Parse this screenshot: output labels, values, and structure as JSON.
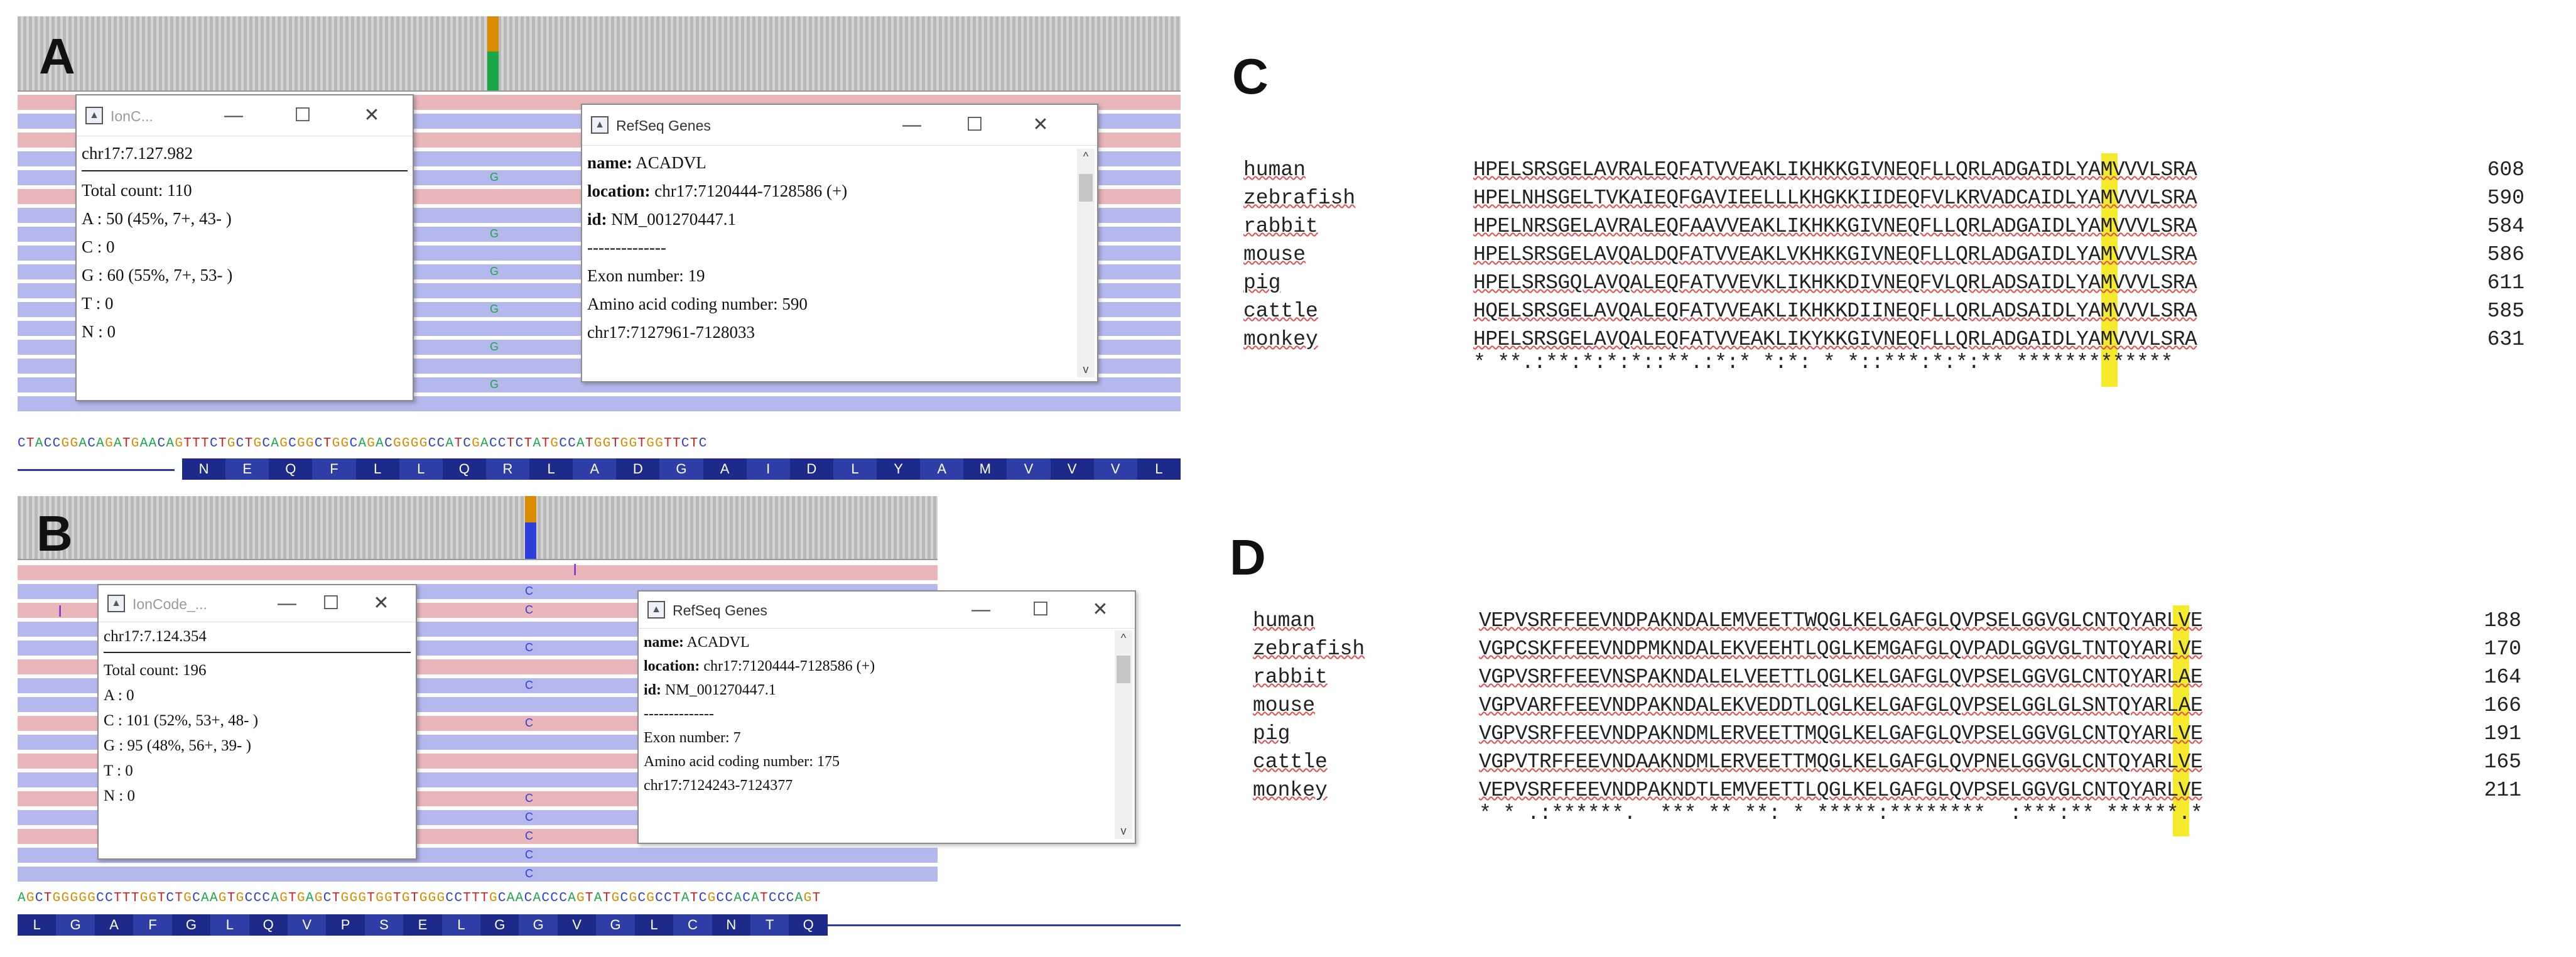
{
  "panel_labels": {
    "a": "A",
    "b": "B",
    "c": "C",
    "d": "D"
  },
  "panel_a": {
    "reference_sequence": "CTACCGGACAGATGAACAGTTTCTGCTGCAGCGGCTGGCAGACGGGGCCATCGACCTCTATGCCATGGTGGTGGTTCTC",
    "amino_acids": [
      "N",
      "E",
      "Q",
      "F",
      "L",
      "L",
      "Q",
      "R",
      "L",
      "A",
      "D",
      "G",
      "A",
      "I",
      "D",
      "L",
      "Y",
      "A",
      "M",
      "V",
      "V",
      "V",
      "L"
    ],
    "coverage_popup": {
      "title": "IonC...",
      "position": "chr17:7.127.982",
      "total": "Total count: 110",
      "a": "A : 50 (45%, 7+, 43- )",
      "c": "C : 0",
      "g": "G : 60 (55%, 7+, 53- )",
      "t": "T : 0",
      "n": "N : 0"
    },
    "refseq_popup": {
      "title": "RefSeq Genes",
      "name_label": "name:",
      "name": "ACADVL",
      "location_label": "location:",
      "location": "chr17:7120444-7128586 (+)",
      "id_label": "id:",
      "id": "NM_001270447.1",
      "sep": "--------------",
      "exon": "Exon number: 19",
      "aa_coding": "Amino acid coding number: 590",
      "range": "chr17:7127961-7128033"
    }
  },
  "panel_b": {
    "reference_sequence": "AGCTGGGGGCCTTTGGTCTGCAAGTGCCCAGTGAGCTGGGTGGTGTGGGCCTTTGCAACACCCAGTATGCGCGCCTATCGCCACATCCCAGT",
    "amino_acids": [
      "L",
      "G",
      "A",
      "F",
      "G",
      "L",
      "Q",
      "V",
      "P",
      "S",
      "E",
      "L",
      "G",
      "G",
      "V",
      "G",
      "L",
      "C",
      "N",
      "T",
      "Q"
    ],
    "coverage_popup": {
      "title": "IonCode_...",
      "position": "chr17:7.124.354",
      "total": "Total count: 196",
      "a": "A : 0",
      "c": "C : 101 (52%, 53+, 48- )",
      "g": "G : 95 (48%, 56+, 39- )",
      "t": "T : 0",
      "n": "N : 0"
    },
    "refseq_popup": {
      "title": "RefSeq Genes",
      "name_label": "name:",
      "name": "ACADVL",
      "location_label": "location:",
      "location": "chr17:7120444-7128586 (+)",
      "id_label": "id:",
      "id": "NM_001270447.1",
      "sep": "--------------",
      "exon": "Exon number: 7",
      "aa_coding": "Amino acid coding number: 175",
      "range": "chr17:7124243-7124377"
    }
  },
  "window_controls": {
    "minimize": "—",
    "maximize": "☐",
    "close": "✕",
    "scroll_up": "^",
    "scroll_down": "v"
  },
  "panel_c": {
    "rows": [
      {
        "species": "human",
        "seq": "HPELSRSGELAVRALEQFATVVEAKLIKHKKGIVNEQFLLQRLADGAIDLYAMVVVLSRA",
        "num": "608"
      },
      {
        "species": "zebrafish",
        "seq": "HPELNHSGELTVKAIEQFGAVIEELLLKHGKKIIDEQFVLKRVADCAIDLYAMVVVLSRA",
        "num": "590"
      },
      {
        "species": "rabbit",
        "seq": "HPELNRSGELAVRALEQFAAVVEAKLIKHKKGIVNEQFLLQRLADGAIDLYAMVVVLSRA",
        "num": "584"
      },
      {
        "species": "mouse",
        "seq": "HPELSRSGELAVQALDQFATVVEAKLVKHKKGIVNEQFLLQRLADGAIDLYAMVVVLSRA",
        "num": "586"
      },
      {
        "species": "pig",
        "seq": "HPELSRSGQLAVQALEQFATVVEVKLIKHKKDIVNEQFVLQRLADSAIDLYAMVVVLSRA",
        "num": "611"
      },
      {
        "species": "cattle",
        "seq": "HQELSRSGELAVQALEQFATVVEAKLIKHKKDIINEQFLLQRLADSAIDLYAMVVVLSRA",
        "num": "585"
      },
      {
        "species": "monkey",
        "seq": "HPELSRSGELAVQALEQFATVVEAKLIKYKKGIVNEQFLLQRLADGAIDLYAMVVVLSRA",
        "num": "631"
      }
    ],
    "consensus": "* **.:**:*:*:*::**.:*:* *:*: * *::***:*:*:** *************"
  },
  "panel_d": {
    "rows": [
      {
        "species": "human",
        "seq": "VEPVSRFFEEVNDPAKNDALEMVEETTWQGLKELGAFGLQVPSELGGVGLCNTQYARLVE",
        "num": "188"
      },
      {
        "species": "zebrafish",
        "seq": "VGPCSKFFEEVNDPMKNDALEKVEEHTLQGLKEMGAFGLQVPADLGGVGLTNTQYARLVE",
        "num": "170"
      },
      {
        "species": "rabbit",
        "seq": "VGPVSRFFEEVNSPAKNDALELVEETTLQGLKELGAFGLQVPSELGGVGLCNTQYARLAE",
        "num": "164"
      },
      {
        "species": "mouse",
        "seq": "VGPVARFFEEVNDPAKNDALEKVEDDTLQGLKELGAFGLQVPSELGGLGLSNTQYARLAE",
        "num": "166"
      },
      {
        "species": "pig",
        "seq": "VGPVSRFFEEVNDPAKNDMLERVEETTMQGLKELGAFGLQVPSELGGVGLCNTQYARLVE",
        "num": "191"
      },
      {
        "species": "cattle",
        "seq": "VGPVTRFFEEVNDAAKNDMLERVEETTMQGLKELGAFGLQVPNELGGVGLCNTQYARLVE",
        "num": "165"
      },
      {
        "species": "monkey",
        "seq": "VEPVSRFFEEVNDPAKNDTLEMVEETTLQGLKELGAFGLQVPSELGGVGLCNTQYARLVE",
        "num": "211"
      }
    ],
    "consensus": "* * .:******.  *** ** **: * *****:********  :***:** ******.*"
  },
  "colors": {
    "highlight": "#f6ea2e",
    "pink_read": "#e9b6ba",
    "blue_read": "#b4b8ec",
    "aa_bar": "#1d2a8a"
  }
}
